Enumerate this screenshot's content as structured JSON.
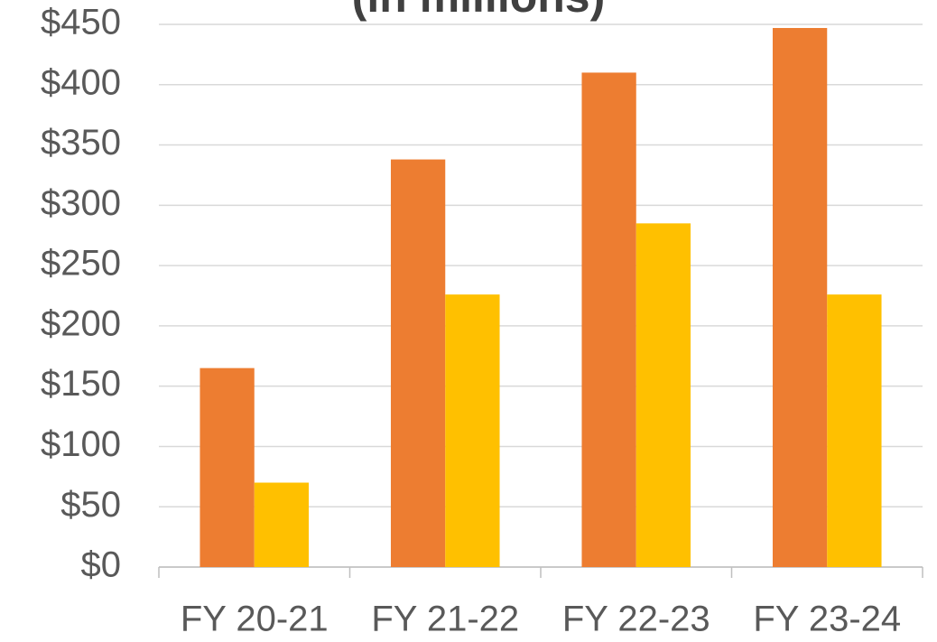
{
  "chart_data": {
    "type": "bar",
    "title": "(in millions)",
    "categories": [
      "FY 20-21",
      "FY 21-22",
      "FY 22-23",
      "FY 23-24"
    ],
    "series": [
      {
        "color": "#ed7d31",
        "values": [
          165,
          338,
          410,
          447
        ]
      },
      {
        "color": "#ffc000",
        "values": [
          70,
          226,
          285,
          226
        ]
      }
    ],
    "ylim": [
      0,
      450
    ],
    "yticks": [
      {
        "value": 0,
        "label": "$0"
      },
      {
        "value": 50,
        "label": "$50"
      },
      {
        "value": 100,
        "label": "$100"
      },
      {
        "value": 150,
        "label": "$150"
      },
      {
        "value": 200,
        "label": "$200"
      },
      {
        "value": 250,
        "label": "$250"
      },
      {
        "value": 300,
        "label": "$300"
      },
      {
        "value": 350,
        "label": "$350"
      },
      {
        "value": 400,
        "label": "$400"
      },
      {
        "value": 450,
        "label": "$450"
      }
    ],
    "grid": true
  }
}
